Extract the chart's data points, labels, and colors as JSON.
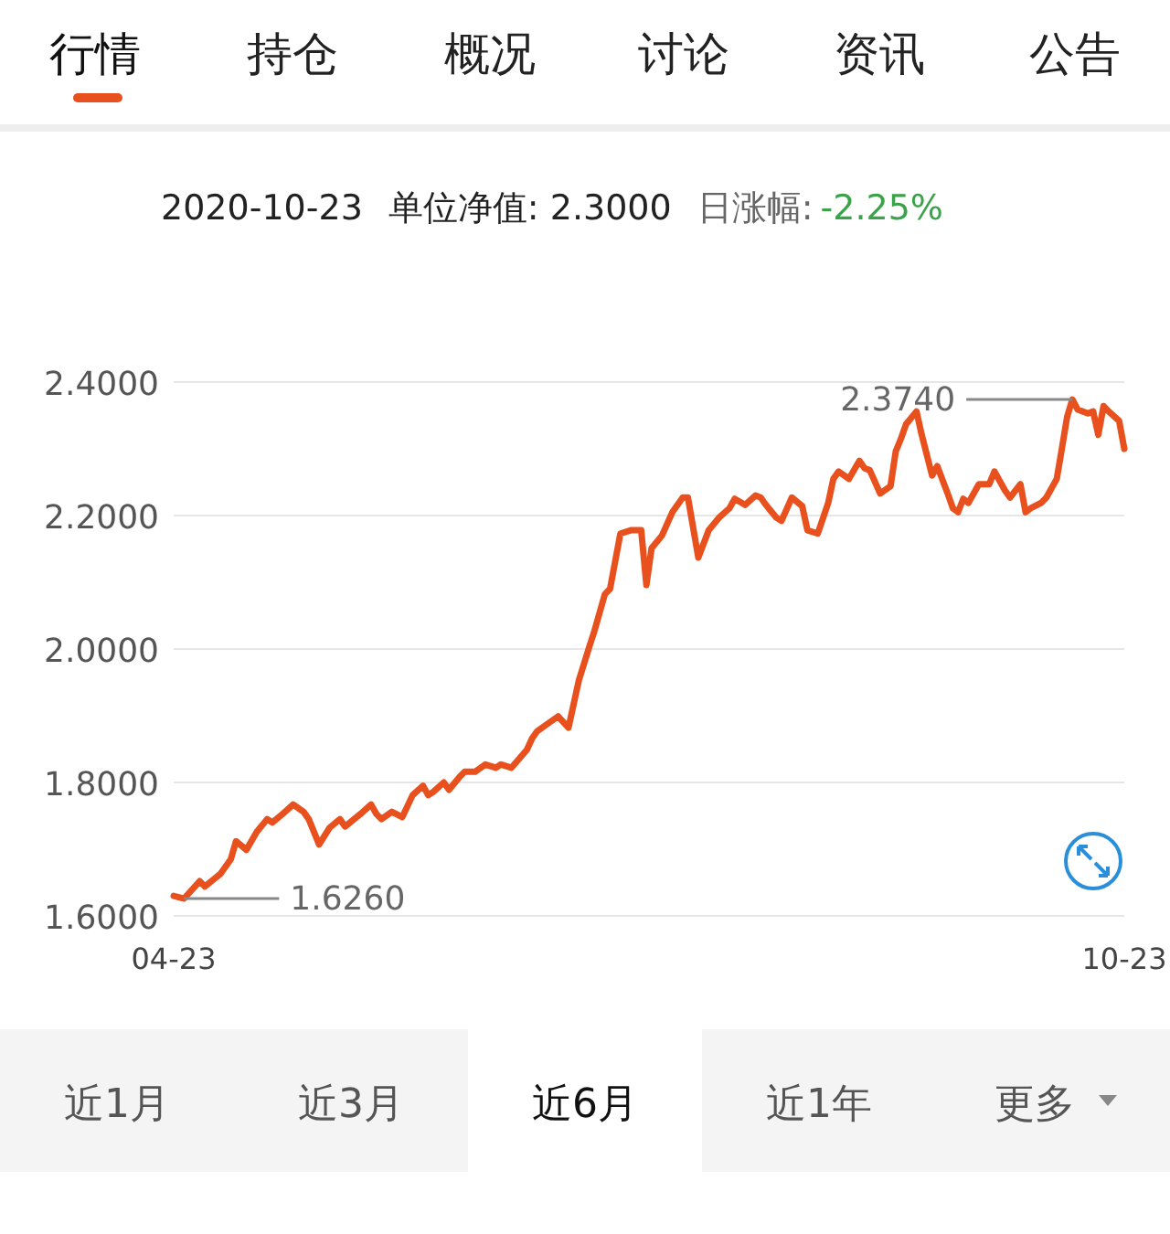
{
  "chart_data": {
    "type": "line",
    "title": "2020-10-23",
    "subtitle": "单位净值: 2.3000",
    "annotations": [
      "行情",
      "持仓",
      "概况",
      "讨论",
      "资讯",
      "公告",
      "日涨幅:",
      "-2.25%",
      "近1月",
      "近3月",
      "近6月",
      "近1年",
      "更多",
      {
        "text": "1.6260",
        "x": "--04-25",
        "y": 1.626
      },
      {
        "text": "2.3740",
        "x": "--10-13",
        "y": 2.374
      }
    ],
    "x": [
      "--04-23",
      "--04-25",
      "--04-28",
      "--04-29",
      "--05-02",
      "--05-04",
      "--05-05",
      "--05-07",
      "--05-09",
      "--05-11",
      "--05-12",
      "--05-14",
      "--05-16",
      "--05-18",
      "--05-19",
      "--05-21",
      "--05-23",
      "--05-25",
      "--05-26",
      "--05-29",
      "--05-31",
      "--06-01",
      "--06-02",
      "--06-04",
      "--06-06",
      "--06-08",
      "--06-10",
      "--06-11",
      "--06-12",
      "--06-14",
      "--06-15",
      "--06-17",
      "--06-18",
      "--06-20",
      "--06-22",
      "--06-24",
      "--06-25",
      "--06-27",
      "--06-30",
      "--07-01",
      "--07-02",
      "--07-04",
      "--07-06",
      "--07-08",
      "--07-10",
      "--07-12",
      "--07-13",
      "--07-15",
      "--07-16",
      "--07-18",
      "--07-20",
      "--07-22",
      "--07-23",
      "--07-24",
      "--07-26",
      "--07-28",
      "--07-30",
      "--07-31",
      "--08-02",
      "--08-04",
      "--08-06",
      "--08-08",
      "--08-09",
      "--08-11",
      "--08-13",
      "--08-14",
      "--08-15",
      "--08-17",
      "--08-18",
      "--08-20",
      "--08-22",
      "--08-23",
      "--08-25",
      "--08-27",
      "--08-28",
      "--08-29",
      "--08-31",
      "--09-02",
      "--09-03",
      "--09-04",
      "--09-06",
      "--09-08",
      "--09-09",
      "--09-10",
      "--09-11",
      "--09-13",
      "--09-14",
      "--09-16",
      "--09-17",
      "--09-19",
      "--09-20",
      "--09-21",
      "--09-22",
      "--09-23",
      "--09-25",
      "--09-27",
      "--09-28",
      "--09-30",
      "--10-01",
      "--10-03",
      "--10-04",
      "--10-05",
      "--10-07",
      "--10-08",
      "--10-10",
      "--10-11",
      "--10-12",
      "--10-13",
      "--10-14",
      "--10-16",
      "--10-17",
      "--10-18",
      "--10-19",
      "--10-20",
      "--10-22",
      "--10-23"
    ],
    "series": [
      {
        "color": "#e8501e",
        "values": [
          1.63,
          1.626,
          1.652,
          1.644,
          1.663,
          1.685,
          1.712,
          1.699,
          1.726,
          1.745,
          1.74,
          1.753,
          1.767,
          1.756,
          1.745,
          1.707,
          1.732,
          1.745,
          1.734,
          1.753,
          1.767,
          1.753,
          1.745,
          1.756,
          1.748,
          1.781,
          1.795,
          1.781,
          1.786,
          1.8,
          1.789,
          1.808,
          1.816,
          1.816,
          1.827,
          1.822,
          1.827,
          1.822,
          1.849,
          1.866,
          1.877,
          1.888,
          1.899,
          1.882,
          1.953,
          2.003,
          2.027,
          2.082,
          2.09,
          2.173,
          2.178,
          2.178,
          2.096,
          2.151,
          2.17,
          2.205,
          2.227,
          2.227,
          2.137,
          2.178,
          2.197,
          2.211,
          2.225,
          2.216,
          2.23,
          2.227,
          2.216,
          2.197,
          2.192,
          2.227,
          2.214,
          2.178,
          2.173,
          2.219,
          2.255,
          2.266,
          2.255,
          2.282,
          2.271,
          2.268,
          2.233,
          2.244,
          2.296,
          2.315,
          2.337,
          2.356,
          2.321,
          2.26,
          2.274,
          2.233,
          2.211,
          2.205,
          2.225,
          2.219,
          2.247,
          2.247,
          2.266,
          2.238,
          2.227,
          2.247,
          2.205,
          2.211,
          2.219,
          2.227,
          2.255,
          2.301,
          2.348,
          2.374,
          2.359,
          2.353,
          2.356,
          2.321,
          2.364,
          2.356,
          2.342,
          2.3
        ]
      }
    ],
    "xlim": [
      "--04-23",
      "--10-23"
    ],
    "xticks": [
      {
        "value": "--04-23",
        "label": "04-23"
      },
      {
        "value": "--10-23",
        "label": "10-23"
      }
    ],
    "ylim": [
      1.6,
      2.4
    ],
    "yticks": [
      {
        "value": 1.6,
        "label": "1.6000"
      },
      {
        "value": 1.8,
        "label": "1.8000"
      },
      {
        "value": 2.0,
        "label": "2.0000"
      },
      {
        "value": 2.2,
        "label": "2.2000"
      },
      {
        "value": 2.4,
        "label": "2.4000"
      }
    ],
    "grid": "y",
    "marker": "none",
    "line_style": "solid"
  }
}
